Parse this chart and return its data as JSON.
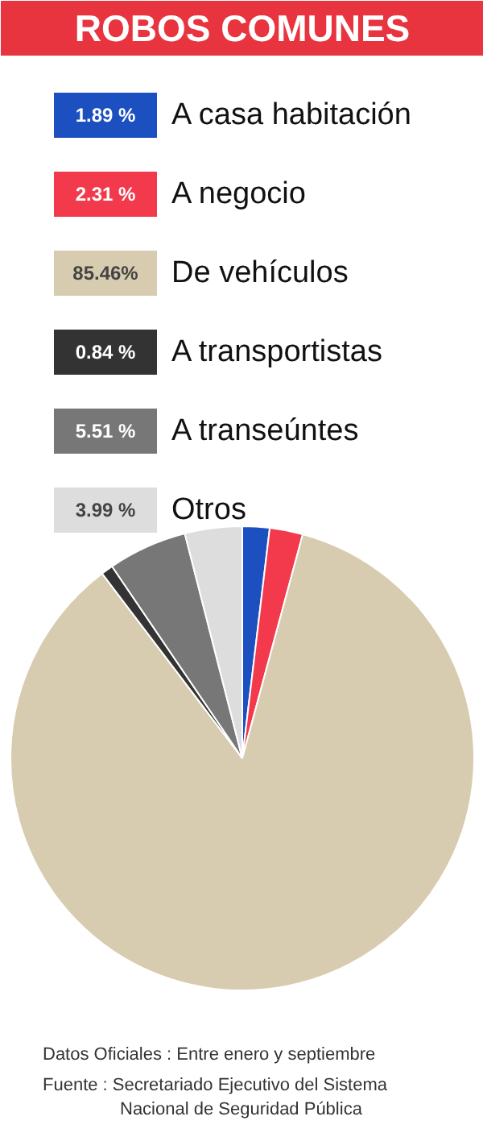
{
  "chart_data": {
    "type": "pie",
    "title": "ROBOS COMUNES",
    "categories": [
      "A casa habitación",
      "A negocio",
      "De vehículos",
      "A transportistas",
      "A transeúntes",
      "Otros"
    ],
    "values": [
      1.89,
      2.31,
      85.46,
      0.84,
      5.51,
      3.99
    ],
    "value_labels": [
      "1.89 %",
      "2.31 %",
      "85.46%",
      "0.84 %",
      "5.51 %",
      "3.99 %"
    ],
    "colors": [
      "#1c4fc0",
      "#f23a4c",
      "#d8ccb0",
      "#333333",
      "#777777",
      "#dddddd"
    ],
    "legend": "top",
    "annotations": [
      "Datos Oficiales : Entre enero y septiembre",
      "Fuente : Secretariado Ejecutivo del Sistema Nacional de Seguridad Pública"
    ]
  }
}
